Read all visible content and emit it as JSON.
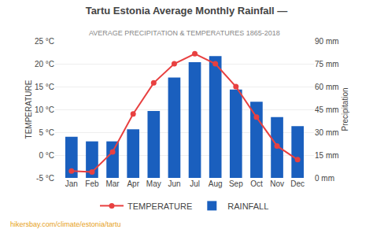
{
  "chart_data": {
    "type": "combo",
    "title": "Tartu Estonia Average Monthly Rainfall —",
    "subtitle": "AVERAGE PRECIPITATION & TEMPERATURES 1865-2018",
    "categories": [
      "Jan",
      "Feb",
      "Mar",
      "Apr",
      "May",
      "Jun",
      "Jul",
      "Aug",
      "Sep",
      "Oct",
      "Nov",
      "Dec"
    ],
    "series": [
      {
        "name": "TEMPERATURE",
        "type": "line",
        "color": "#e84040",
        "marker": "circle",
        "values": [
          -3.5,
          -3.7,
          0.7,
          9.0,
          15.8,
          20.0,
          22.2,
          20.0,
          15.0,
          8.3,
          2.0,
          -1.0
        ]
      },
      {
        "name": "RAINFALL",
        "type": "bar",
        "axis": "y2",
        "color": "#1a5fbe",
        "values": [
          27,
          24,
          24,
          32,
          44,
          66,
          76,
          80,
          58,
          50,
          40,
          34
        ]
      }
    ],
    "ylabel": "TEMPERATURE",
    "y2label": "Precipitation",
    "ylim": [
      -5,
      25
    ],
    "yticks": [
      {
        "value": -5,
        "label": "-5 °C"
      },
      {
        "value": 0,
        "label": "0 °C"
      },
      {
        "value": 5,
        "label": "5 °C"
      },
      {
        "value": 10,
        "label": "10 °C"
      },
      {
        "value": 15,
        "label": "15 °C"
      },
      {
        "value": 20,
        "label": "20 °C"
      },
      {
        "value": 25,
        "label": "25 °C"
      }
    ],
    "y2lim": [
      0,
      90
    ],
    "y2ticks": [
      {
        "value": 0,
        "label": "0 mm"
      },
      {
        "value": 15,
        "label": "15 mm"
      },
      {
        "value": 30,
        "label": "30 mm"
      },
      {
        "value": 45,
        "label": "45 mm"
      },
      {
        "value": 60,
        "label": "60 mm"
      },
      {
        "value": 75,
        "label": "75 mm"
      },
      {
        "value": 90,
        "label": "90 mm"
      }
    ],
    "grid": true,
    "legend": "bottom",
    "annotations": [
      "hikersbay.com/climate/estonia/tartu"
    ]
  }
}
